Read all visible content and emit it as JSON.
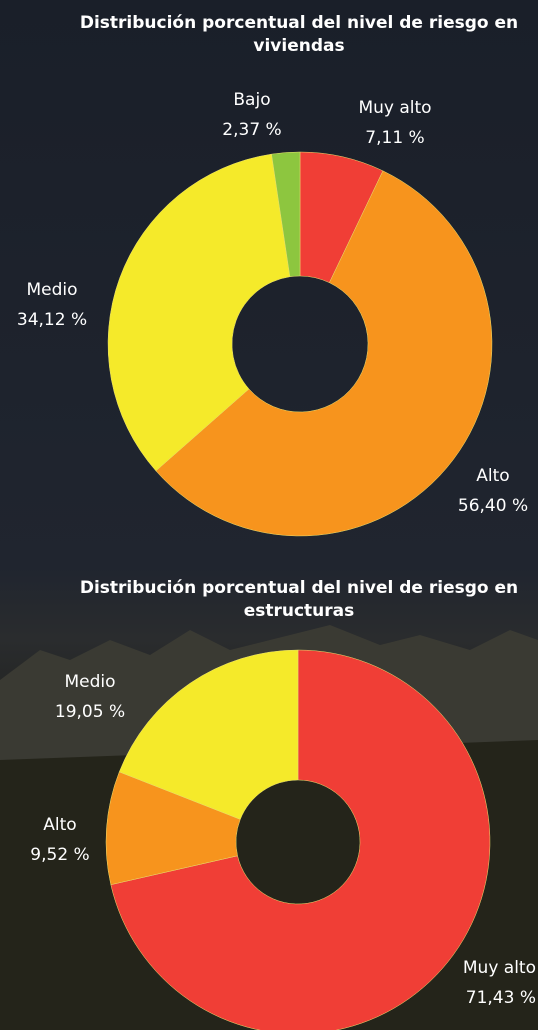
{
  "chart_data": [
    {
      "type": "donut",
      "title": "Distribución porcentual del nivel de riesgo en viviendas",
      "categories": [
        "Muy alto",
        "Alto",
        "Medio",
        "Bajo"
      ],
      "values": [
        7.11,
        56.4,
        34.12,
        2.37
      ],
      "value_labels": [
        "7,11 %",
        "56,40 %",
        "34,12 %",
        "2,37 %"
      ],
      "colors": [
        "#f03e36",
        "#f7941d",
        "#f5ea2a",
        "#8dc63f"
      ]
    },
    {
      "type": "donut",
      "title": "Distribución porcentual del nivel de riesgo en estructuras",
      "categories": [
        "Muy alto",
        "Alto",
        "Medio"
      ],
      "values": [
        71.43,
        9.52,
        19.05
      ],
      "value_labels": [
        "71,43 %",
        "9,52 %",
        "19,05 %"
      ],
      "colors": [
        "#f03e36",
        "#f7941d",
        "#f5ea2a"
      ]
    }
  ]
}
